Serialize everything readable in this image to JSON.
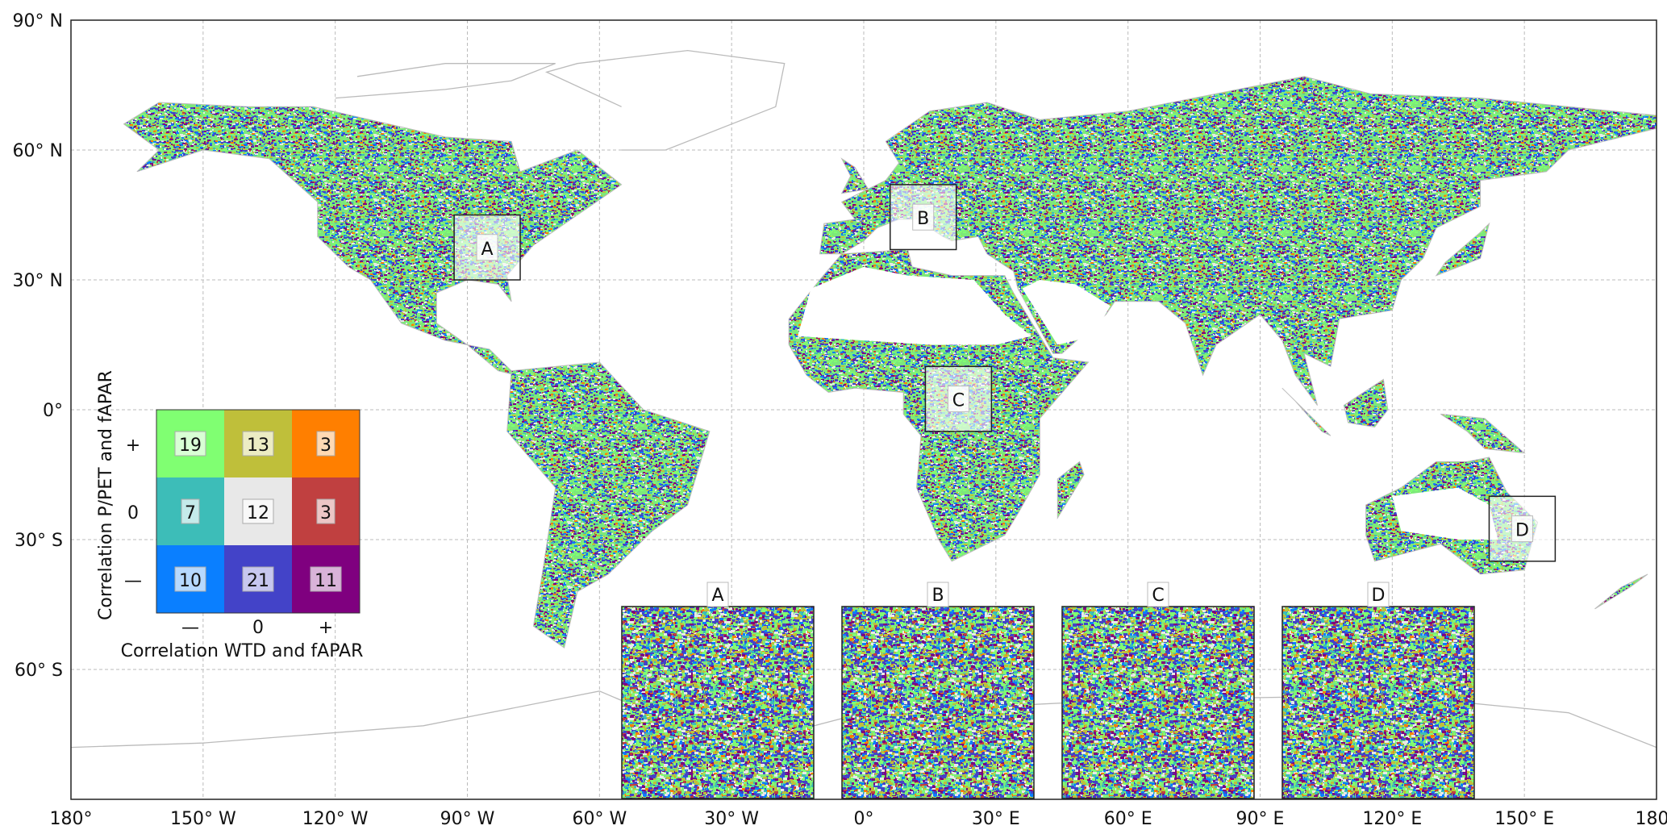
{
  "map": {
    "lat_ticks": [
      {
        "value": 90,
        "label": "90° N"
      },
      {
        "value": 60,
        "label": "60° N"
      },
      {
        "value": 30,
        "label": "30° N"
      },
      {
        "value": 0,
        "label": "0°"
      },
      {
        "value": -30,
        "label": "30° S"
      },
      {
        "value": -60,
        "label": "60° S"
      }
    ],
    "lon_ticks": [
      {
        "value": -180,
        "label": "180°"
      },
      {
        "value": -150,
        "label": "150° W"
      },
      {
        "value": -120,
        "label": "120° W"
      },
      {
        "value": -90,
        "label": "90° W"
      },
      {
        "value": -60,
        "label": "60° W"
      },
      {
        "value": -30,
        "label": "30° W"
      },
      {
        "value": 0,
        "label": "0°"
      },
      {
        "value": 30,
        "label": "30° E"
      },
      {
        "value": 60,
        "label": "60° E"
      },
      {
        "value": 90,
        "label": "90° E"
      },
      {
        "value": 120,
        "label": "120° E"
      },
      {
        "value": 150,
        "label": "150° E"
      },
      {
        "value": 180,
        "label": "180°"
      }
    ],
    "gridlines": true,
    "regions": [
      {
        "label": "A",
        "lon": [
          -93,
          -78
        ],
        "lat": [
          30,
          45
        ]
      },
      {
        "label": "B",
        "lon": [
          6,
          21
        ],
        "lat": [
          37,
          52
        ]
      },
      {
        "label": "C",
        "lon": [
          14,
          29
        ],
        "lat": [
          -5,
          10
        ]
      },
      {
        "label": "D",
        "lon": [
          142,
          157
        ],
        "lat": [
          -35,
          -20
        ]
      }
    ]
  },
  "legend": {
    "ylabel": "Correlation P/PET and fAPAR",
    "xlabel": "Correlation WTD and fAPAR",
    "row_labels": [
      "+",
      "0",
      "—"
    ],
    "col_labels": [
      "—",
      "0",
      "+"
    ],
    "cells": [
      [
        {
          "value": "19",
          "color": "#80ff72"
        },
        {
          "value": "13",
          "color": "#bfbf3a"
        },
        {
          "value": "3",
          "color": "#ff7f00"
        }
      ],
      [
        {
          "value": "7",
          "color": "#3dbdb8"
        },
        {
          "value": "12",
          "color": "#e8e8e8"
        },
        {
          "value": "3",
          "color": "#c04040"
        }
      ],
      [
        {
          "value": "10",
          "color": "#0a7fff"
        },
        {
          "value": "21",
          "color": "#4343c8"
        },
        {
          "value": "11",
          "color": "#7f007f"
        }
      ]
    ]
  },
  "insets": [
    {
      "label": "A"
    },
    {
      "label": "B"
    },
    {
      "label": "C"
    },
    {
      "label": "D"
    }
  ]
}
